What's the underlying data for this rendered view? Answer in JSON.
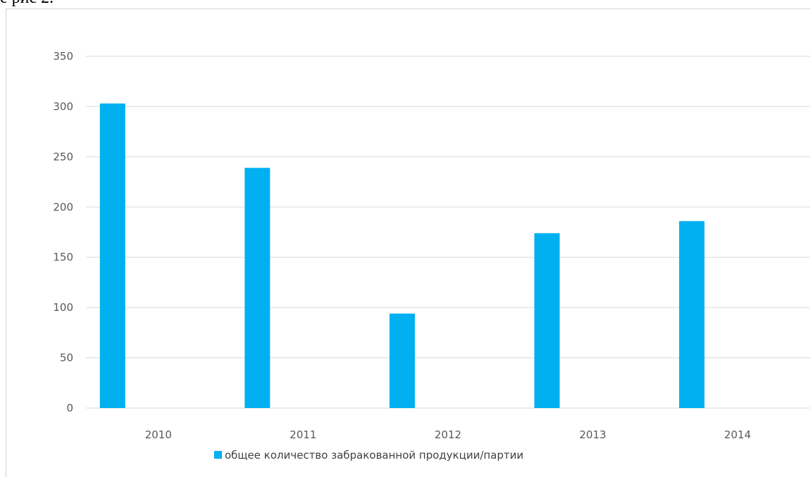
{
  "document": {
    "caption_fragment": "е рис 2."
  },
  "colors": {
    "bar": "#00b0f0",
    "gridline": "#d9d9d9",
    "axis": "#d9d9d9",
    "text": "#595959"
  },
  "chart_data": {
    "type": "bar",
    "title": "",
    "xlabel": "",
    "ylabel": "",
    "categories": [
      "2010",
      "2011",
      "2012",
      "2013",
      "2014"
    ],
    "series": [
      {
        "name": "общее количество забракованной продукции/партии",
        "values": [
          303,
          239,
          94,
          174,
          186
        ]
      }
    ],
    "ylim": [
      0,
      350
    ],
    "yticks": [
      "0",
      "50",
      "100",
      "150",
      "200",
      "250",
      "300",
      "350"
    ],
    "grid": true,
    "legend": "bottom"
  }
}
